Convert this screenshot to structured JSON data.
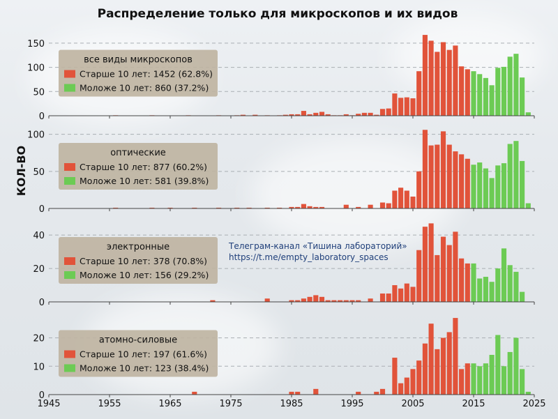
{
  "chart_data": {
    "type": "bar",
    "title": "Распределение только для микроскопов и их видов",
    "ylabel": "КОЛ-ВО",
    "xlim": [
      1945,
      2025
    ],
    "x_ticks": [
      "1945",
      "1955",
      "1965",
      "1975",
      "1985",
      "1995",
      "2005",
      "2015",
      "2025"
    ],
    "grid": "horizontal dashed",
    "legend_placement": "upper-left",
    "annotation": {
      "line1": "Телеграм-канал «Тишина лабораторий»",
      "line2": "https://t.me/empty_laboratory_spaces"
    },
    "colors": {
      "older": "#e1533a",
      "younger": "#6ccb54"
    },
    "panels": [
      {
        "legend_title": "все виды микроскопов",
        "series": [
          {
            "name": "Старше 10 лет: 1452 (62.8%)",
            "color": "#e1533a"
          },
          {
            "name": "Моложе 10 лет: 860 (37.2%)",
            "color": "#6ccb54"
          }
        ],
        "ylim": [
          0,
          170
        ],
        "y_ticks": [
          "0",
          "50",
          "100",
          "150"
        ],
        "bars": [
          [
            1956,
            1
          ],
          [
            1962,
            1
          ],
          [
            1968,
            1
          ],
          [
            1973,
            1
          ],
          [
            1976,
            1
          ],
          [
            1977,
            2
          ],
          [
            1979,
            2
          ],
          [
            1981,
            1
          ],
          [
            1983,
            1
          ],
          [
            1984,
            2
          ],
          [
            1985,
            3
          ],
          [
            1986,
            3
          ],
          [
            1987,
            10
          ],
          [
            1988,
            3
          ],
          [
            1989,
            6
          ],
          [
            1990,
            8
          ],
          [
            1991,
            3
          ],
          [
            1992,
            1
          ],
          [
            1993,
            1
          ],
          [
            1994,
            3
          ],
          [
            1995,
            1
          ],
          [
            1996,
            4
          ],
          [
            1997,
            6
          ],
          [
            1998,
            6
          ],
          [
            1999,
            2
          ],
          [
            2000,
            14
          ],
          [
            2001,
            15
          ],
          [
            2002,
            46
          ],
          [
            2003,
            37
          ],
          [
            2004,
            38
          ],
          [
            2005,
            36
          ],
          [
            2006,
            92
          ],
          [
            2007,
            167
          ],
          [
            2008,
            155
          ],
          [
            2009,
            132
          ],
          [
            2010,
            152
          ],
          [
            2011,
            136
          ],
          [
            2012,
            145
          ],
          [
            2013,
            102
          ],
          [
            2014,
            96
          ],
          [
            2015,
            92
          ],
          [
            2016,
            86
          ],
          [
            2017,
            78
          ],
          [
            2018,
            63
          ],
          [
            2019,
            99
          ],
          [
            2020,
            101
          ],
          [
            2021,
            122
          ],
          [
            2022,
            128
          ],
          [
            2023,
            79
          ],
          [
            2024,
            7
          ]
        ]
      },
      {
        "legend_title": "оптические",
        "series": [
          {
            "name": "Старше 10 лет: 877 (60.2%)",
            "color": "#e1533a"
          },
          {
            "name": "Моложе 10 лет: 581 (39.8%)",
            "color": "#6ccb54"
          }
        ],
        "ylim": [
          0,
          110
        ],
        "y_ticks": [
          "0",
          "50",
          "100"
        ],
        "bars": [
          [
            1956,
            1
          ],
          [
            1962,
            1
          ],
          [
            1965,
            1
          ],
          [
            1969,
            1
          ],
          [
            1973,
            1
          ],
          [
            1976,
            1
          ],
          [
            1978,
            1
          ],
          [
            1981,
            1
          ],
          [
            1983,
            1
          ],
          [
            1985,
            2
          ],
          [
            1986,
            2
          ],
          [
            1987,
            6
          ],
          [
            1988,
            3
          ],
          [
            1989,
            2
          ],
          [
            1990,
            2
          ],
          [
            1994,
            5
          ],
          [
            1996,
            2
          ],
          [
            1998,
            5
          ],
          [
            2000,
            8
          ],
          [
            2001,
            7
          ],
          [
            2002,
            24
          ],
          [
            2003,
            28
          ],
          [
            2004,
            24
          ],
          [
            2005,
            16
          ],
          [
            2006,
            50
          ],
          [
            2007,
            106
          ],
          [
            2008,
            85
          ],
          [
            2009,
            86
          ],
          [
            2010,
            104
          ],
          [
            2011,
            86
          ],
          [
            2012,
            77
          ],
          [
            2013,
            73
          ],
          [
            2014,
            67
          ],
          [
            2015,
            59
          ],
          [
            2016,
            62
          ],
          [
            2017,
            54
          ],
          [
            2018,
            41
          ],
          [
            2019,
            58
          ],
          [
            2020,
            61
          ],
          [
            2021,
            87
          ],
          [
            2022,
            91
          ],
          [
            2023,
            64
          ],
          [
            2024,
            7
          ]
        ]
      },
      {
        "legend_title": "электронные",
        "series": [
          {
            "name": "Старше 10 лет: 378 (70.8%)",
            "color": "#e1533a"
          },
          {
            "name": "Моложе 10 лет: 156 (29.2%)",
            "color": "#6ccb54"
          }
        ],
        "ylim": [
          0,
          48
        ],
        "y_ticks": [
          "0",
          "20",
          "40"
        ],
        "bars": [
          [
            1972,
            1
          ],
          [
            1981,
            2
          ],
          [
            1985,
            1
          ],
          [
            1986,
            1
          ],
          [
            1987,
            2
          ],
          [
            1988,
            3
          ],
          [
            1989,
            4
          ],
          [
            1990,
            3
          ],
          [
            1991,
            1
          ],
          [
            1992,
            1
          ],
          [
            1993,
            1
          ],
          [
            1994,
            1
          ],
          [
            1995,
            1
          ],
          [
            1996,
            1
          ],
          [
            1998,
            2
          ],
          [
            2000,
            5
          ],
          [
            2001,
            5
          ],
          [
            2002,
            10
          ],
          [
            2003,
            8
          ],
          [
            2004,
            11
          ],
          [
            2005,
            9
          ],
          [
            2006,
            31
          ],
          [
            2007,
            45
          ],
          [
            2008,
            47
          ],
          [
            2009,
            28
          ],
          [
            2010,
            39
          ],
          [
            2011,
            34
          ],
          [
            2012,
            42
          ],
          [
            2013,
            26
          ],
          [
            2014,
            23
          ],
          [
            2015,
            23
          ],
          [
            2016,
            14
          ],
          [
            2017,
            15
          ],
          [
            2018,
            12
          ],
          [
            2019,
            20
          ],
          [
            2020,
            32
          ],
          [
            2021,
            22
          ],
          [
            2022,
            18
          ],
          [
            2023,
            6
          ]
        ]
      },
      {
        "legend_title": "атомно-силовые",
        "series": [
          {
            "name": "Старше 10 лет: 197 (61.6%)",
            "color": "#e1533a"
          },
          {
            "name": "Моложе 10 лет: 123 (38.4%)",
            "color": "#6ccb54"
          }
        ],
        "ylim": [
          0,
          28
        ],
        "y_ticks": [
          "0",
          "10",
          "20"
        ],
        "bars": [
          [
            1969,
            1
          ],
          [
            1985,
            1
          ],
          [
            1986,
            1
          ],
          [
            1989,
            2
          ],
          [
            1996,
            1
          ],
          [
            1999,
            1
          ],
          [
            2000,
            2
          ],
          [
            2002,
            13
          ],
          [
            2003,
            4
          ],
          [
            2004,
            6
          ],
          [
            2005,
            9
          ],
          [
            2006,
            12
          ],
          [
            2007,
            18
          ],
          [
            2008,
            25
          ],
          [
            2009,
            16
          ],
          [
            2010,
            20
          ],
          [
            2011,
            22
          ],
          [
            2012,
            27
          ],
          [
            2013,
            9
          ],
          [
            2014,
            11
          ],
          [
            2015,
            11
          ],
          [
            2016,
            10
          ],
          [
            2017,
            11
          ],
          [
            2018,
            14
          ],
          [
            2019,
            21
          ],
          [
            2020,
            10
          ],
          [
            2021,
            15
          ],
          [
            2022,
            20
          ],
          [
            2023,
            9
          ],
          [
            2024,
            1
          ]
        ]
      }
    ]
  }
}
